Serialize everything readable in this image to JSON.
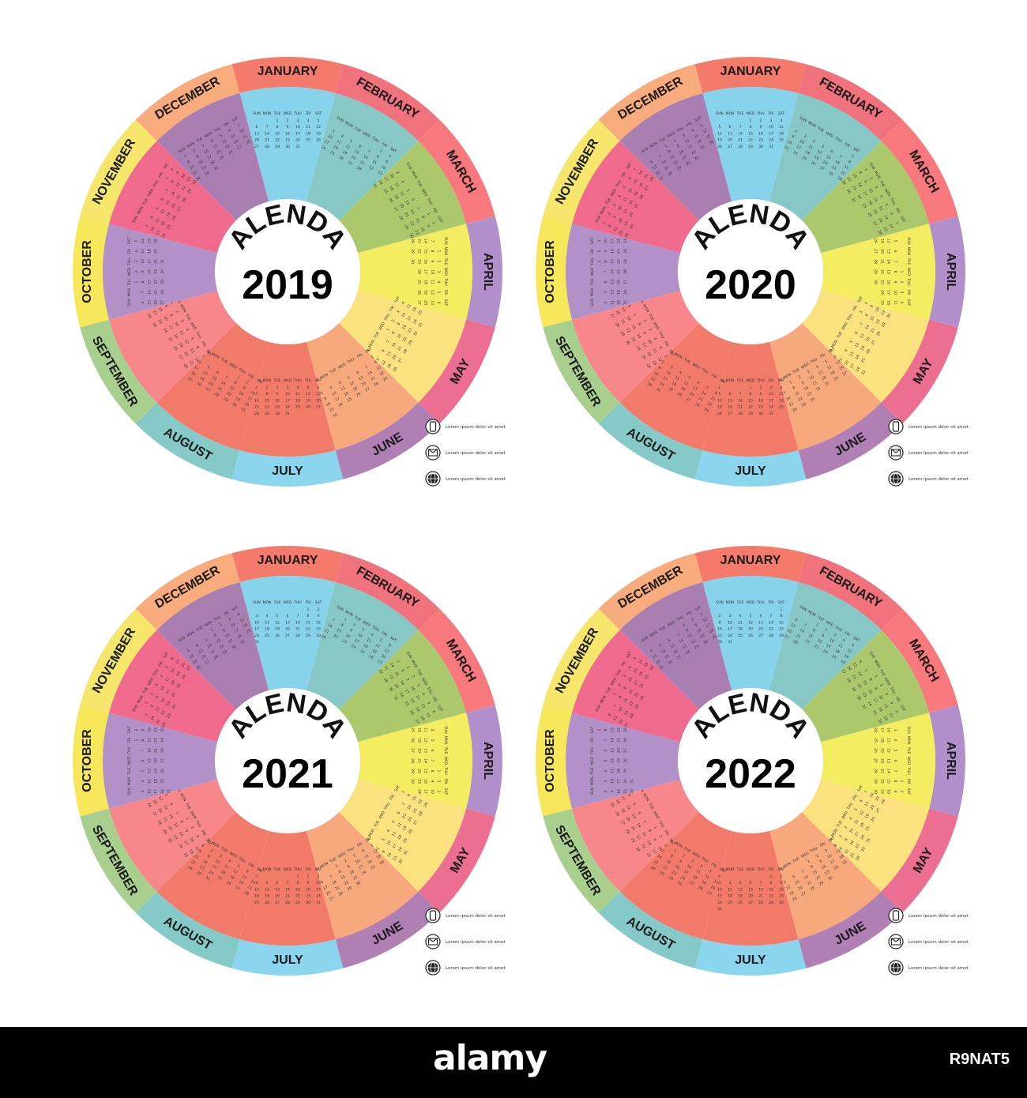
{
  "months": [
    "JANUARY",
    "FEBRUARY",
    "MARCH",
    "APRIL",
    "MAY",
    "JUNE",
    "JULY",
    "AUGUST",
    "SEPTEMBER",
    "OCTOBER",
    "NOVEMBER",
    "DECEMBER"
  ],
  "weekdays": [
    "SUN",
    "MON",
    "TUE",
    "WED",
    "THU",
    "FRI",
    "SAT"
  ],
  "calendar_word": "CALENDAR",
  "colors": {
    "outer_ring": [
      "#f47a6c",
      "#f0727d",
      "#f7797d",
      "#b08fca",
      "#ec6f91",
      "#b07fb4",
      "#8bd6ee",
      "#86c9c9",
      "#a9cf8e",
      "#f6e85a",
      "#f6e66b",
      "#f8ab7c"
    ],
    "inner": [
      "#87d3ec",
      "#87c7c5",
      "#abc96c",
      "#f4ec61",
      "#fbe27f",
      "#f7a97d",
      "#f27a68",
      "#f27a6b",
      "#f7878a",
      "#b291c8",
      "#ef6a8d",
      "#a97fb2"
    ]
  },
  "calendars": [
    {
      "year": "2019",
      "first_weekday": 2
    },
    {
      "year": "2020",
      "first_weekday": 3
    },
    {
      "year": "2021",
      "first_weekday": 5
    },
    {
      "year": "2022",
      "first_weekday": 6
    }
  ],
  "contact_text": "Lorem ipsum dolor sit amet",
  "contact_icons": [
    "phone-icon",
    "mail-icon",
    "globe-icon"
  ],
  "footer": {
    "logo": "alamy",
    "image_id": "R9NAT5"
  }
}
